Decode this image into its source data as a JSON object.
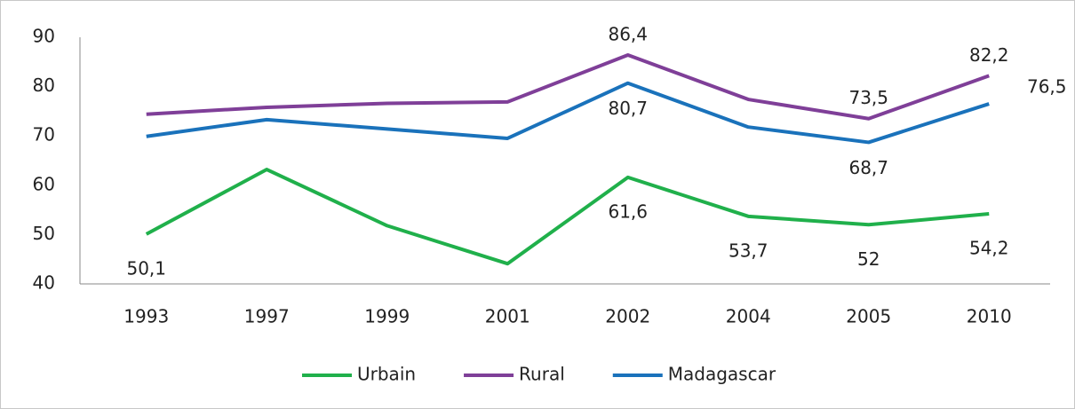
{
  "chart_data": {
    "type": "line",
    "categories": [
      "1993",
      "1997",
      "1999",
      "2001",
      "2002",
      "2004",
      "2005",
      "2010"
    ],
    "series": [
      {
        "name": "Urbain",
        "color": "#20b04b",
        "values": [
          50.1,
          63.2,
          51.8,
          44.1,
          61.6,
          53.7,
          52,
          54.2
        ],
        "value_labels": [
          "50,1",
          null,
          null,
          null,
          "61,6",
          "53,7",
          "52",
          "54,2"
        ]
      },
      {
        "name": "Rural",
        "color": "#7f3f98",
        "values": [
          74.4,
          75.8,
          76.6,
          76.9,
          86.4,
          77.4,
          73.5,
          82.2
        ],
        "value_labels": [
          null,
          null,
          null,
          null,
          "86,4",
          null,
          "73,5",
          "82,2"
        ]
      },
      {
        "name": "Madagascar",
        "color": "#1a72bb",
        "values": [
          69.9,
          73.3,
          71.4,
          69.5,
          80.7,
          71.8,
          68.7,
          76.5
        ],
        "value_labels": [
          null,
          null,
          null,
          null,
          "80,7",
          null,
          "68,7",
          "76,5"
        ]
      }
    ],
    "ylim": [
      40,
      90
    ],
    "yticks": [
      40,
      50,
      60,
      70,
      80,
      90
    ],
    "legend": "bottom"
  }
}
